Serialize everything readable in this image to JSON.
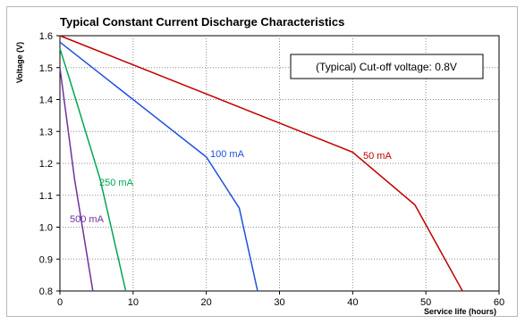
{
  "chart_data": {
    "type": "line",
    "title": "Typical Constant Current Discharge Characteristics",
    "xlabel": "Service life (hours)",
    "ylabel": "Voltage (V)",
    "xlim": [
      0,
      60
    ],
    "ylim": [
      0.8,
      1.6
    ],
    "xticks": [
      0,
      10,
      20,
      30,
      40,
      50,
      60
    ],
    "yticks": [
      0.8,
      0.9,
      1.0,
      1.1,
      1.2,
      1.3,
      1.4,
      1.5,
      1.6
    ],
    "grid": true,
    "annotation": "(Typical) Cut-off voltage: 0.8V",
    "series": [
      {
        "name": "50 mA",
        "color": "#c00000",
        "x": [
          0,
          40,
          48.5,
          55
        ],
        "y": [
          1.6,
          1.235,
          1.07,
          0.8
        ]
      },
      {
        "name": "100 mA",
        "color": "#1f4fe0",
        "x": [
          0,
          20,
          24.5,
          27
        ],
        "y": [
          1.58,
          1.22,
          1.06,
          0.8
        ]
      },
      {
        "name": "250 mA",
        "color": "#00a651",
        "x": [
          0,
          1.5,
          5.5,
          9
        ],
        "y": [
          1.56,
          1.45,
          1.15,
          0.8
        ]
      },
      {
        "name": "500 mA",
        "color": "#7030a0",
        "x": [
          0,
          2,
          4.5
        ],
        "y": [
          1.5,
          1.15,
          0.8
        ]
      }
    ]
  }
}
